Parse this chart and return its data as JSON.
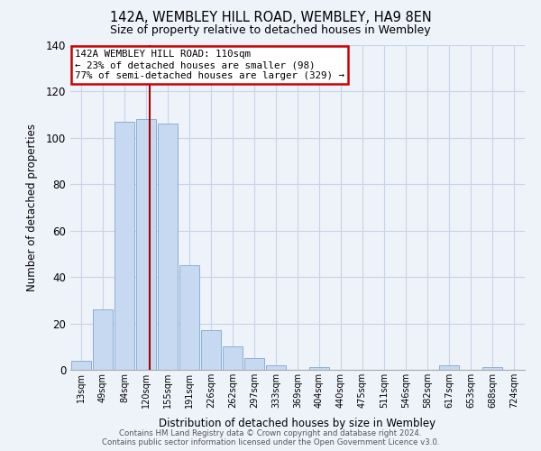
{
  "title": "142A, WEMBLEY HILL ROAD, WEMBLEY, HA9 8EN",
  "subtitle": "Size of property relative to detached houses in Wembley",
  "xlabel": "Distribution of detached houses by size in Wembley",
  "ylabel": "Number of detached properties",
  "bar_labels": [
    "13sqm",
    "49sqm",
    "84sqm",
    "120sqm",
    "155sqm",
    "191sqm",
    "226sqm",
    "262sqm",
    "297sqm",
    "333sqm",
    "369sqm",
    "404sqm",
    "440sqm",
    "475sqm",
    "511sqm",
    "546sqm",
    "582sqm",
    "617sqm",
    "653sqm",
    "688sqm",
    "724sqm"
  ],
  "bar_values": [
    4,
    26,
    107,
    108,
    106,
    45,
    17,
    10,
    5,
    2,
    0,
    1,
    0,
    0,
    0,
    0,
    0,
    2,
    0,
    1,
    0
  ],
  "bar_color": "#c6d9f0",
  "bar_edge_color": "#8ab0d8",
  "annotation_text_line1": "142A WEMBLEY HILL ROAD: 110sqm",
  "annotation_text_line2": "← 23% of detached houses are smaller (98)",
  "annotation_text_line3": "77% of semi-detached houses are larger (329) →",
  "vline_color": "#aa0000",
  "vline_x_index": 3.15,
  "annotation_box_facecolor": "#ffffff",
  "annotation_box_edgecolor": "#cc0000",
  "ylim": [
    0,
    140
  ],
  "yticks": [
    0,
    20,
    40,
    60,
    80,
    100,
    120,
    140
  ],
  "background_color": "#eef2f9",
  "grid_color": "#c8d4e8",
  "footer_line1": "Contains HM Land Registry data © Crown copyright and database right 2024.",
  "footer_line2": "Contains public sector information licensed under the Open Government Licence v3.0."
}
